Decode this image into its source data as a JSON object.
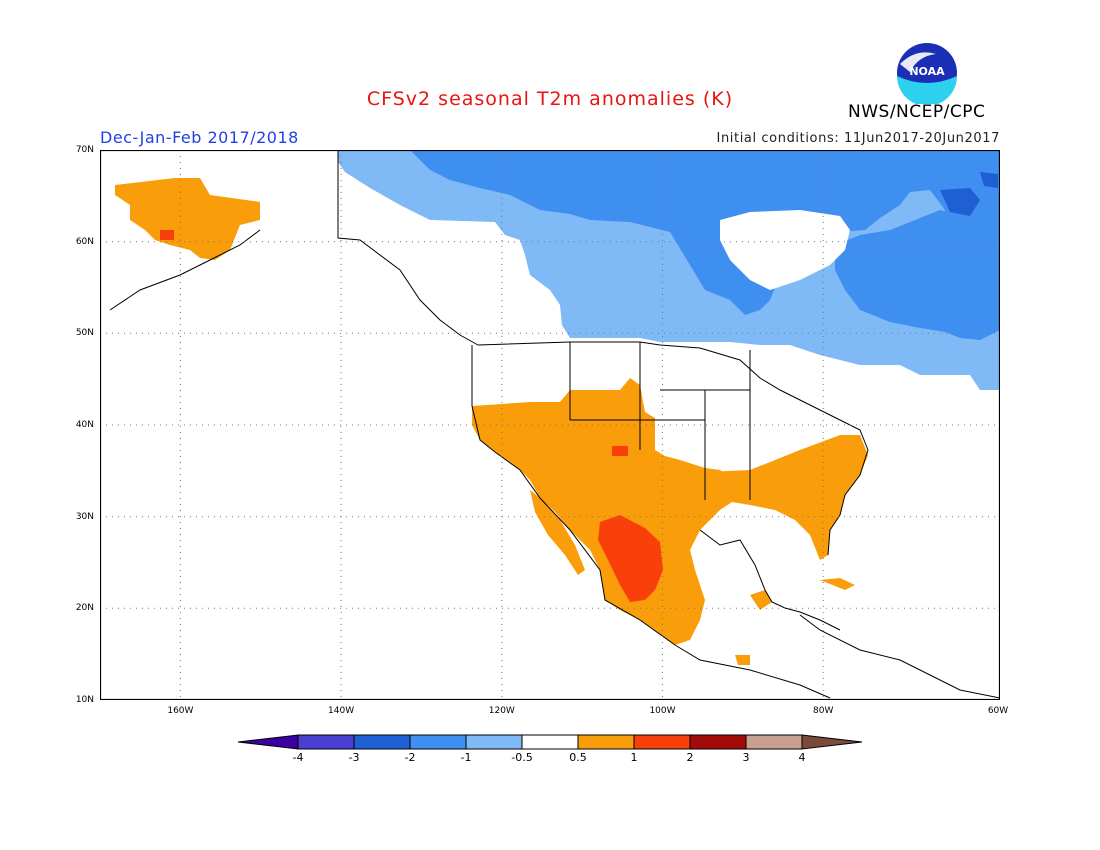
{
  "title": "CFSv2 seasonal T2m anomalies (K)",
  "season": "Dec-Jan-Feb 2017/2018",
  "initial_conditions": "Initial conditions: 11Jun2017-20Jun2017",
  "agency": "NWS/NCEP/CPC",
  "logo_text": "NOAA",
  "map": {
    "lon_range": [
      -172,
      -60
    ],
    "lat_range": [
      10,
      70
    ],
    "lat_ticks": [
      "70N",
      "60N",
      "50N",
      "40N",
      "30N",
      "20N",
      "10N"
    ],
    "lon_ticks": [
      "160W",
      "140W",
      "120W",
      "100W",
      "80W",
      "60W"
    ],
    "grid": "dotted"
  },
  "colorbar": {
    "labels": [
      "-4",
      "-3",
      "-2",
      "-1",
      "-0.5",
      "0.5",
      "1",
      "2",
      "3",
      "4"
    ],
    "colors": [
      "#3a00a0",
      "#4a3fd0",
      "#1e5fd4",
      "#3f8ff0",
      "#7fb9f6",
      "#ffffff",
      "#f99e0a",
      "#f9400a",
      "#a30a0a",
      "#c8a090",
      "#7a4a3a"
    ]
  },
  "anomaly_colors": {
    "cold_strong": "#3f8ff0",
    "cold_weak": "#7fb9f6",
    "warm_weak": "#f99e0a",
    "warm_strong": "#f9400a"
  }
}
